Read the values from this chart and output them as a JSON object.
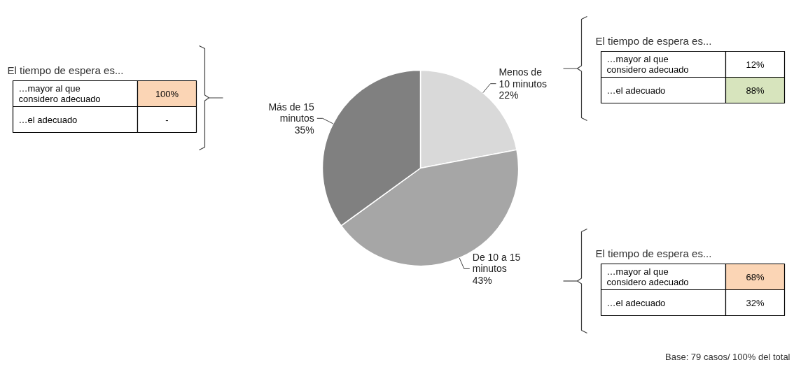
{
  "chart_data": {
    "type": "pie",
    "categories": [
      "Menos de 10 minutos",
      "De 10 a 15 minutos",
      "Más de 15 minutos"
    ],
    "values": [
      22,
      43,
      35
    ],
    "value_labels": [
      "22%",
      "43%",
      "35%"
    ],
    "colors": [
      "#d9d9d9",
      "#a6a6a6",
      "#808080"
    ],
    "annotations": [
      "El tiempo de espera es...",
      "…mayor al que considero adecuado",
      "12%",
      "…el adecuado",
      "88%",
      "El tiempo de espera es...",
      "…mayor al que considero adecuado",
      "68%",
      "…el adecuado",
      "32%",
      "El tiempo de espera es...",
      "…mayor al que considero adecuado",
      "100%",
      "…el adecuado",
      "-",
      "Base: 79 casos/ 100% del total"
    ]
  }
}
